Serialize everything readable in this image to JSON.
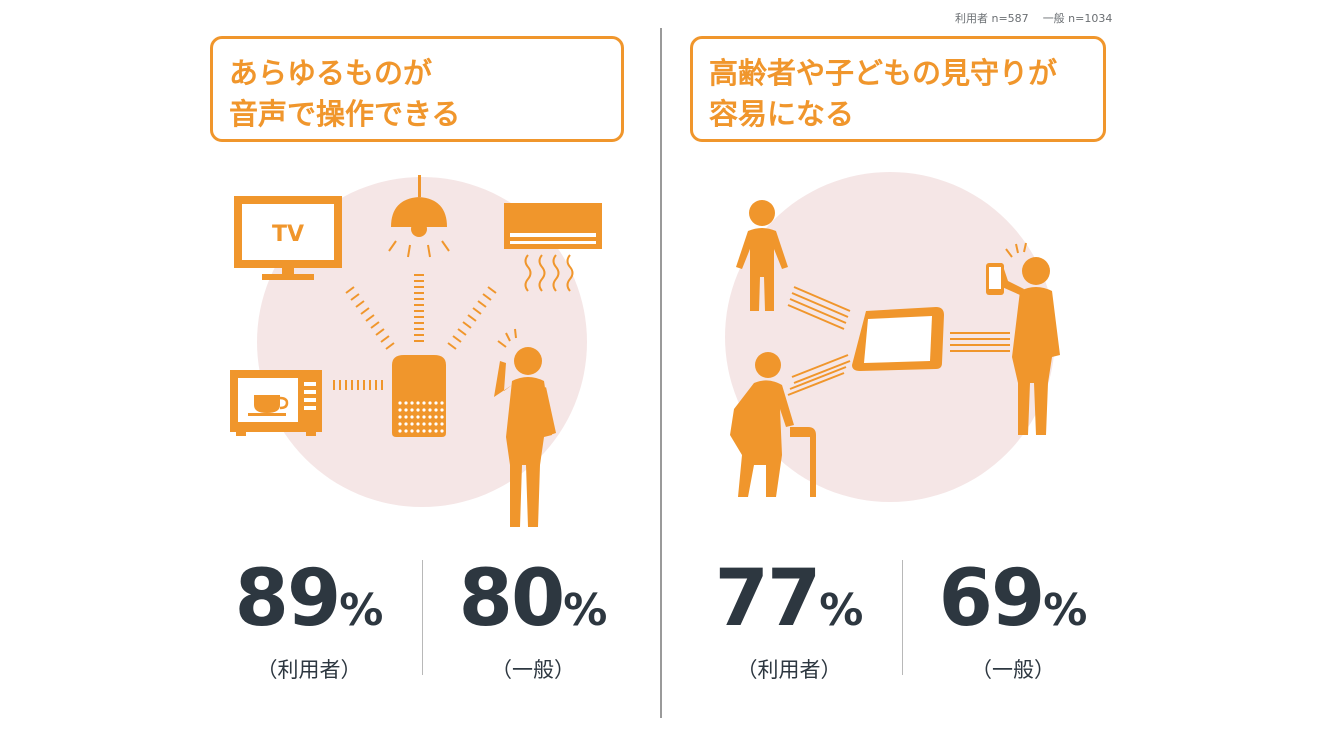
{
  "sample_note": {
    "users": "利用者 n=587",
    "general": "一般 n=1034"
  },
  "colors": {
    "accent": "#f0962c",
    "circle_bg": "#f5e6e6",
    "text_dark": "#2d3740",
    "divider": "#9a9a9a"
  },
  "panels": [
    {
      "title_line1": "あらゆるものが",
      "title_line2": "音声で操作できる",
      "icons": [
        "tv-icon",
        "ceiling-lamp-icon",
        "air-conditioner-icon",
        "microwave-icon",
        "smart-speaker-icon",
        "person-speaking-icon"
      ],
      "tv_text": "TV",
      "stats": [
        {
          "value": "89",
          "unit": "%",
          "label": "（利用者）"
        },
        {
          "value": "80",
          "unit": "%",
          "label": "（一般）"
        }
      ]
    },
    {
      "title_line1": "高齢者や子どもの見守りが",
      "title_line2": "容易になる",
      "icons": [
        "child-icon",
        "elderly-person-with-cane-icon",
        "smart-display-icon",
        "person-with-smartphone-icon"
      ],
      "stats": [
        {
          "value": "77",
          "unit": "%",
          "label": "（利用者）"
        },
        {
          "value": "69",
          "unit": "%",
          "label": "（一般）"
        }
      ]
    }
  ]
}
